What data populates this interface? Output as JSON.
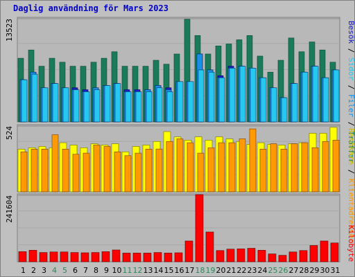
{
  "title": "Daglig användning för Mars 2023",
  "colors": {
    "title": "#0000c8",
    "panel_bg": "#c0c0c0",
    "plot_bg": "#b8b8b8",
    "traffar": "#1a7a5a",
    "filer": "#1890e8",
    "sidor": "#26c8f0",
    "besok": "#1c20c0",
    "klientadresser": "#ff9a00",
    "besokare": "#ffff00",
    "kilobyte": "#ff0000",
    "weekend_label": "#2a8a5a",
    "weekday_label": "#000000"
  },
  "chart_data": [
    {
      "type": "bar",
      "name": "top-panel",
      "ytick_label": "13523",
      "ylim": [
        0,
        13523
      ],
      "categories": [
        "1",
        "2",
        "3",
        "4",
        "5",
        "6",
        "7",
        "8",
        "9",
        "10",
        "11",
        "12",
        "13",
        "14",
        "15",
        "16",
        "17",
        "18",
        "19",
        "20",
        "21",
        "22",
        "23",
        "24",
        "25",
        "26",
        "27",
        "28",
        "29",
        "30",
        "31"
      ],
      "weekend_days": [
        "4",
        "5",
        "11",
        "12",
        "18",
        "19",
        "25",
        "26"
      ],
      "series": [
        {
          "name": "Träffar",
          "values": [
            8230,
            9300,
            7200,
            8230,
            7720,
            7200,
            7200,
            7720,
            8230,
            9070,
            7200,
            7200,
            7200,
            7970,
            7460,
            8780,
            13270,
            11170,
            8780,
            9820,
            10080,
            10620,
            11170,
            8510,
            6430,
            7970,
            10850,
            9070,
            10340,
            9300,
            7720
          ]
        },
        {
          "name": "Filer",
          "values": [
            5450,
            6430,
            4410,
            4960,
            4410,
            4160,
            3900,
            4410,
            4700,
            4960,
            3900,
            3900,
            4160,
            4700,
            4160,
            5210,
            5210,
            8780,
            6720,
            5710,
            6950,
            7200,
            6950,
            5710,
            4410,
            3130,
            4960,
            6430,
            7200,
            5710,
            6720
          ]
        },
        {
          "name": "Sidor",
          "values": [
            5450,
            6170,
            4410,
            4960,
            4410,
            4160,
            3900,
            4160,
            4700,
            4960,
            3900,
            3900,
            3900,
            4410,
            3900,
            5210,
            5210,
            6720,
            6430,
            5710,
            6950,
            7200,
            6950,
            5710,
            4410,
            3130,
            4960,
            6430,
            7200,
            5710,
            6720
          ]
        },
        {
          "name": "Besök",
          "values": [
            5450,
            6430,
            4410,
            4960,
            4410,
            4410,
            4160,
            4410,
            4700,
            4960,
            4160,
            4160,
            4160,
            4700,
            4410,
            5210,
            5210,
            8780,
            6720,
            5970,
            7200,
            7200,
            6950,
            5710,
            4410,
            3130,
            4960,
            6430,
            7200,
            5710,
            6720
          ]
        }
      ]
    },
    {
      "type": "bar",
      "name": "middle-panel",
      "ytick_label": "524",
      "ylim": [
        0,
        524
      ],
      "categories": [
        "1",
        "2",
        "3",
        "4",
        "5",
        "6",
        "7",
        "8",
        "9",
        "10",
        "11",
        "12",
        "13",
        "14",
        "15",
        "16",
        "17",
        "18",
        "19",
        "20",
        "21",
        "22",
        "23",
        "24",
        "25",
        "26",
        "27",
        "28",
        "29",
        "30",
        "31"
      ],
      "series": [
        {
          "name": "Besökare",
          "values": [
            333,
            344,
            354,
            344,
            383,
            365,
            344,
            375,
            365,
            375,
            312,
            354,
            365,
            393,
            470,
            429,
            403,
            429,
            403,
            429,
            413,
            393,
            370,
            383,
            370,
            365,
            375,
            383,
            457,
            457,
            503
          ]
        },
        {
          "name": "Klientadresser",
          "values": [
            312,
            333,
            333,
            445,
            333,
            293,
            302,
            365,
            354,
            312,
            282,
            302,
            333,
            334,
            393,
            413,
            383,
            302,
            344,
            383,
            383,
            413,
            491,
            333,
            375,
            333,
            375,
            383,
            344,
            393,
            403
          ]
        }
      ]
    },
    {
      "type": "bar",
      "name": "bottom-panel",
      "ytick_label": "241604",
      "ylim": [
        0,
        241604
      ],
      "categories": [
        "1",
        "2",
        "3",
        "4",
        "5",
        "6",
        "7",
        "8",
        "9",
        "10",
        "11",
        "12",
        "13",
        "14",
        "15",
        "16",
        "17",
        "18",
        "19",
        "20",
        "21",
        "22",
        "23",
        "24",
        "25",
        "26",
        "27",
        "28",
        "29",
        "30",
        "31"
      ],
      "series": [
        {
          "name": "Kilobyte",
          "values": [
            36000,
            41000,
            33000,
            35000,
            35000,
            33000,
            32000,
            33000,
            36000,
            42000,
            31000,
            31000,
            31000,
            33000,
            31000,
            32000,
            74000,
            239000,
            106000,
            40000,
            45000,
            46000,
            48000,
            41000,
            28000,
            23000,
            35000,
            40000,
            58000,
            74000,
            67000
          ]
        }
      ]
    }
  ],
  "legend": {
    "top": [
      {
        "label": "Träffar",
        "color": "#1a7a5a"
      },
      {
        "label": "Filer",
        "color": "#1890e8"
      },
      {
        "label": "Sidor",
        "color": "#26c8f0"
      },
      {
        "label": "Besök",
        "color": "#1c20c0"
      }
    ],
    "middle": [
      {
        "label": "Klientadresser",
        "color": "#ff9a00"
      },
      {
        "label": "Besökare",
        "color": "#d0c000"
      }
    ],
    "bottom": [
      {
        "label": "Kilobyte",
        "color": "#ff0000"
      }
    ],
    "separator": "/"
  }
}
